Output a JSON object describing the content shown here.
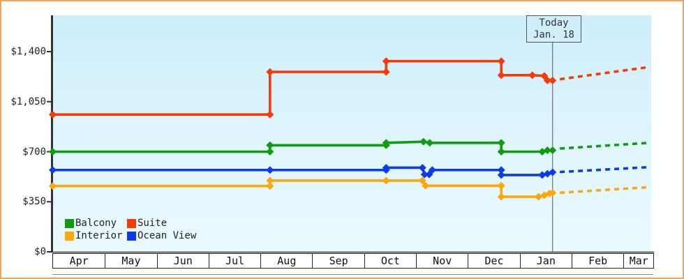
{
  "window": {
    "frame_color": "#eaa55e",
    "background": "#ffffff"
  },
  "today": {
    "title": "Today",
    "date_label": "Jan. 18"
  },
  "chart_data": {
    "type": "line",
    "title": "",
    "xlabel": "",
    "ylabel": "",
    "x_months": [
      "Apr",
      "May",
      "Jun",
      "Jul",
      "Aug",
      "Sep",
      "Oct",
      "Nov",
      "Dec",
      "Jan",
      "Feb",
      "Mar"
    ],
    "y_ticks": [
      {
        "value": 0,
        "label": "$0"
      },
      {
        "value": 350,
        "label": "$350"
      },
      {
        "value": 700,
        "label": "$700"
      },
      {
        "value": 1050,
        "label": "$1,050"
      },
      {
        "value": 1400,
        "label": "$1,400"
      }
    ],
    "ylim": [
      0,
      1655
    ],
    "grid": false,
    "legend_position": "bottom-left",
    "plot_background_top": "#cdeefb",
    "plot_background_bottom": "#eaf9fe",
    "today_marker": {
      "month_position": 9.64,
      "label_line1": "Today",
      "label_line2": "Jan. 18"
    },
    "note": "x values are months since Apr (0 = Apr 1, 9.64 = Jan 18); p values are USD prices",
    "series": [
      {
        "name": "Balcony",
        "color": "#0f9d0f",
        "points": [
          {
            "m": 0,
            "p": 700
          },
          {
            "m": 4.19,
            "p": 700
          },
          {
            "m": 4.19,
            "p": 745
          },
          {
            "m": 6.43,
            "p": 745
          },
          {
            "m": 6.43,
            "p": 762
          },
          {
            "m": 7.15,
            "p": 770
          },
          {
            "m": 7.27,
            "p": 762
          },
          {
            "m": 8.65,
            "p": 762
          },
          {
            "m": 8.65,
            "p": 700
          },
          {
            "m": 9.44,
            "p": 700
          },
          {
            "m": 9.54,
            "p": 710
          },
          {
            "m": 9.64,
            "p": 710
          }
        ],
        "projection": [
          {
            "m": 9.78,
            "p": 722
          },
          {
            "m": 11.5,
            "p": 762
          }
        ]
      },
      {
        "name": "Suite",
        "color": "#f63a05",
        "points": [
          {
            "m": 0,
            "p": 960
          },
          {
            "m": 4.19,
            "p": 960
          },
          {
            "m": 4.19,
            "p": 1258
          },
          {
            "m": 6.43,
            "p": 1258
          },
          {
            "m": 6.43,
            "p": 1333
          },
          {
            "m": 8.65,
            "p": 1333
          },
          {
            "m": 8.65,
            "p": 1235
          },
          {
            "m": 9.25,
            "p": 1235
          },
          {
            "m": 9.48,
            "p": 1230
          },
          {
            "m": 9.54,
            "p": 1198
          },
          {
            "m": 9.64,
            "p": 1198
          }
        ],
        "projection": [
          {
            "m": 9.78,
            "p": 1207
          },
          {
            "m": 11.5,
            "p": 1292
          }
        ]
      },
      {
        "name": "Interior",
        "color": "#ffa60d",
        "points": [
          {
            "m": 0,
            "p": 460
          },
          {
            "m": 4.19,
            "p": 460
          },
          {
            "m": 4.19,
            "p": 498
          },
          {
            "m": 6.43,
            "p": 498
          },
          {
            "m": 7.13,
            "p": 498
          },
          {
            "m": 7.19,
            "p": 462
          },
          {
            "m": 8.65,
            "p": 462
          },
          {
            "m": 8.65,
            "p": 385
          },
          {
            "m": 9.37,
            "p": 385
          },
          {
            "m": 9.48,
            "p": 395
          },
          {
            "m": 9.58,
            "p": 408
          },
          {
            "m": 9.64,
            "p": 412
          }
        ],
        "projection": [
          {
            "m": 9.78,
            "p": 413
          },
          {
            "m": 11.5,
            "p": 452
          }
        ]
      },
      {
        "name": "Ocean View",
        "color": "#0c3bee",
        "points": [
          {
            "m": 0,
            "p": 572
          },
          {
            "m": 4.19,
            "p": 572
          },
          {
            "m": 6.43,
            "p": 572
          },
          {
            "m": 6.43,
            "p": 588
          },
          {
            "m": 7.13,
            "p": 588
          },
          {
            "m": 7.17,
            "p": 541
          },
          {
            "m": 7.26,
            "p": 541
          },
          {
            "m": 7.32,
            "p": 572
          },
          {
            "m": 8.65,
            "p": 572
          },
          {
            "m": 8.65,
            "p": 537
          },
          {
            "m": 9.44,
            "p": 537
          },
          {
            "m": 9.54,
            "p": 546
          },
          {
            "m": 9.64,
            "p": 556
          }
        ],
        "projection": [
          {
            "m": 9.78,
            "p": 558
          },
          {
            "m": 11.5,
            "p": 592
          }
        ]
      }
    ],
    "legend": {
      "items": [
        {
          "label": "Balcony",
          "color": "#0f9d0f"
        },
        {
          "label": "Suite",
          "color": "#f63a05"
        },
        {
          "label": "Interior",
          "color": "#ffa60d"
        },
        {
          "label": "Ocean View",
          "color": "#0c3bee"
        }
      ]
    }
  }
}
